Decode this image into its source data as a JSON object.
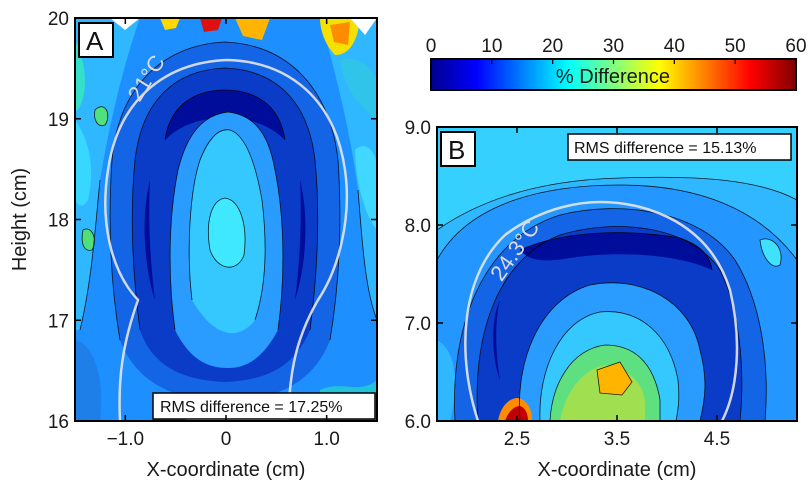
{
  "chart_data": [
    {
      "type": "heatmap",
      "panel_label": "A",
      "xlabel": "X-coordinate (cm)",
      "ylabel": "Height (cm)",
      "xlim": [
        -1.5,
        1.5
      ],
      "ylim": [
        16,
        20
      ],
      "x_ticks": [
        -1.0,
        0,
        1.0
      ],
      "x_tick_labels": [
        "−1.0",
        "0",
        "1.0"
      ],
      "y_ticks": [
        16,
        17,
        18,
        19,
        20
      ],
      "y_tick_labels": [
        "16",
        "17",
        "18",
        "19",
        "20"
      ],
      "annotation": "RMS difference = 17.25%",
      "isotherm_label": "21°C",
      "colorscale": "jet",
      "zlim": [
        0,
        60
      ],
      "grid": false
    },
    {
      "type": "heatmap",
      "panel_label": "B",
      "xlabel": "X-coordinate (cm)",
      "ylabel": "",
      "xlim": [
        1.7,
        5.3
      ],
      "ylim": [
        6.0,
        9.0
      ],
      "x_ticks": [
        2.5,
        3.5,
        4.5
      ],
      "x_tick_labels": [
        "2.5",
        "3.5",
        "4.5"
      ],
      "y_ticks": [
        6.0,
        7.0,
        8.0,
        9.0
      ],
      "y_tick_labels": [
        "6.0",
        "7.0",
        "8.0",
        "9.0"
      ],
      "annotation": "RMS difference = 15.13%",
      "isotherm_label": "24.3°C",
      "colorscale": "jet",
      "zlim": [
        0,
        60
      ],
      "grid": false
    }
  ],
  "colorbar": {
    "label": "% Difference",
    "ticks": [
      0,
      10,
      20,
      30,
      40,
      50,
      60
    ],
    "tick_labels": [
      "0",
      "10",
      "20",
      "30",
      "40",
      "50",
      "60"
    ]
  }
}
